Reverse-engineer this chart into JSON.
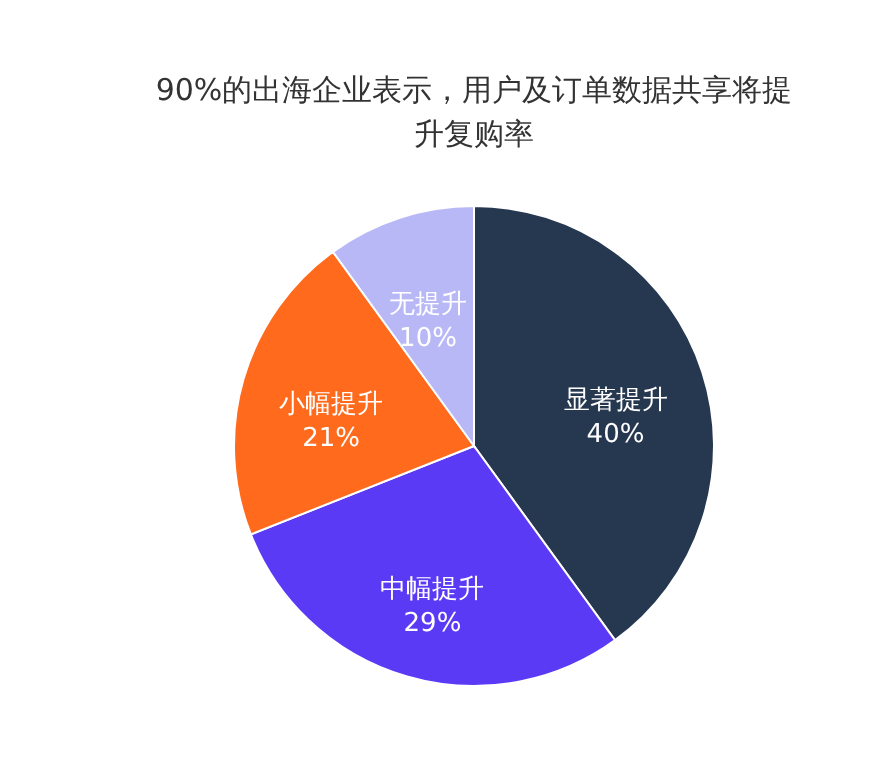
{
  "chart_data": {
    "type": "pie",
    "title": "90%的出海企业表示，用户及订单数据共享将提升复购率",
    "categories": [
      "显著提升",
      "中幅提升",
      "小幅提升",
      "无提升"
    ],
    "values": [
      40,
      29,
      21,
      10
    ],
    "colors": [
      "#263750",
      "#5a3af5",
      "#ff6a1c",
      "#b9b8f7"
    ],
    "value_labels": [
      "40%",
      "29%",
      "21%",
      "10%"
    ]
  }
}
